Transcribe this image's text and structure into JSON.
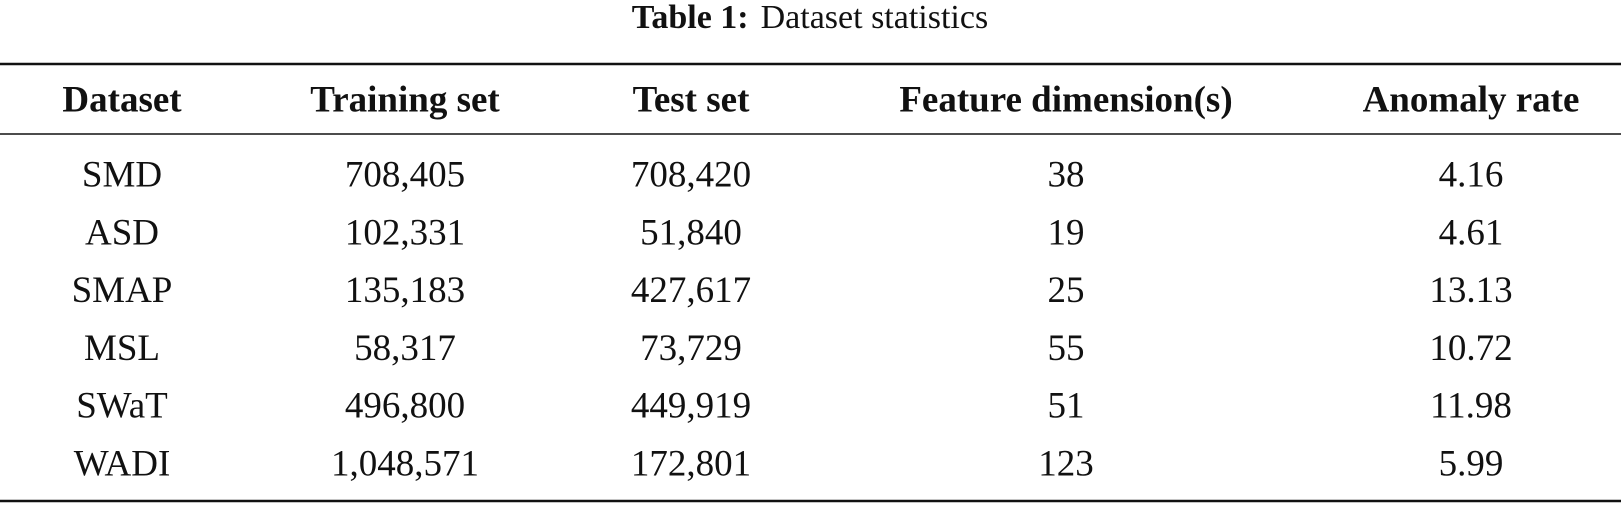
{
  "caption": {
    "label": "Table 1:",
    "text": "Dataset statistics"
  },
  "table": {
    "header": [
      "Dataset",
      "Training set",
      "Test set",
      "Feature dimension(s)",
      "Anomaly rate"
    ],
    "rows": [
      [
        "SMD",
        "708,405",
        "708,420",
        "38",
        "4.16"
      ],
      [
        "ASD",
        "102,331",
        "51,840",
        "19",
        "4.61"
      ],
      [
        "SMAP",
        "135,183",
        "427,617",
        "25",
        "13.13"
      ],
      [
        "MSL",
        "58,317",
        "73,729",
        "55",
        "10.72"
      ],
      [
        "SWaT",
        "496,800",
        "449,919",
        "51",
        "11.98"
      ],
      [
        "WADI",
        "1,048,571",
        "172,801",
        "123",
        "5.99"
      ]
    ]
  }
}
